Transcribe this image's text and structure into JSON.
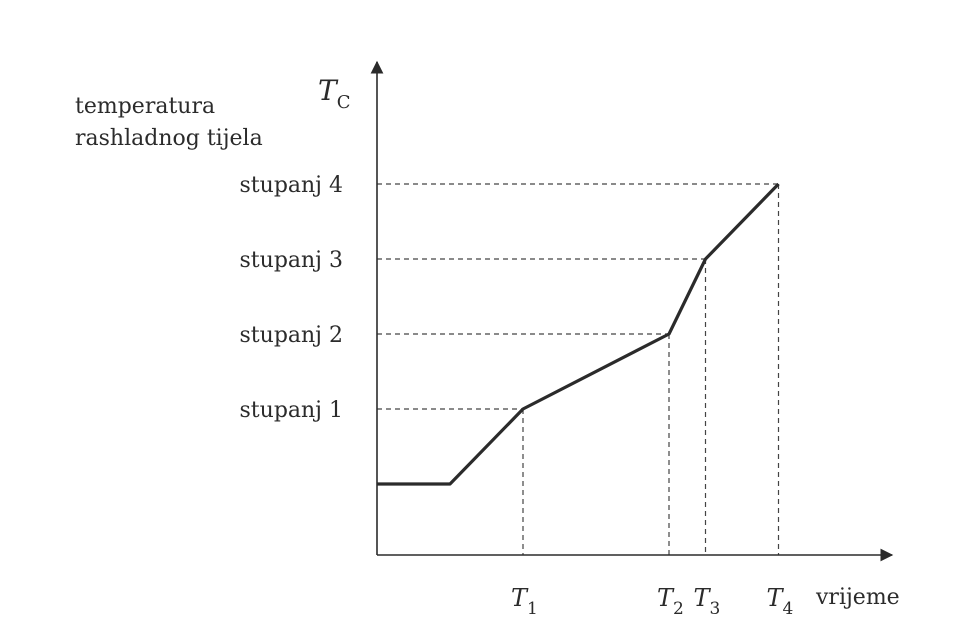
{
  "chart_data": {
    "type": "line",
    "title": "",
    "ylabel_lines": [
      "temperatura",
      "rashladnog tijela"
    ],
    "ylabel_symbol": "T",
    "ylabel_symbol_sub": "C",
    "xlabel": "vrijeme",
    "x_ticks": [
      {
        "main": "T",
        "sub": "1",
        "value": 1
      },
      {
        "main": "T",
        "sub": "2",
        "value": 2
      },
      {
        "main": "T",
        "sub": "3",
        "value": 2.25
      },
      {
        "main": "T",
        "sub": "4",
        "value": 2.75
      }
    ],
    "y_ticks": [
      {
        "label": "stupanj 1",
        "value": 1
      },
      {
        "label": "stupanj 2",
        "value": 2
      },
      {
        "label": "stupanj 3",
        "value": 3
      },
      {
        "label": "stupanj 4",
        "value": 4
      }
    ],
    "series": [
      {
        "points": [
          {
            "x": 0,
            "y": 0
          },
          {
            "x": 0.5,
            "y": 0
          },
          {
            "x": 1,
            "y": 1
          },
          {
            "x": 2,
            "y": 2
          },
          {
            "x": 2.25,
            "y": 3
          },
          {
            "x": 2.75,
            "y": 4
          }
        ]
      }
    ],
    "xlim": [
      0,
      3.5
    ],
    "ylim": [
      -1,
      4.6
    ],
    "grid": false,
    "guide_lines": "dashed"
  }
}
